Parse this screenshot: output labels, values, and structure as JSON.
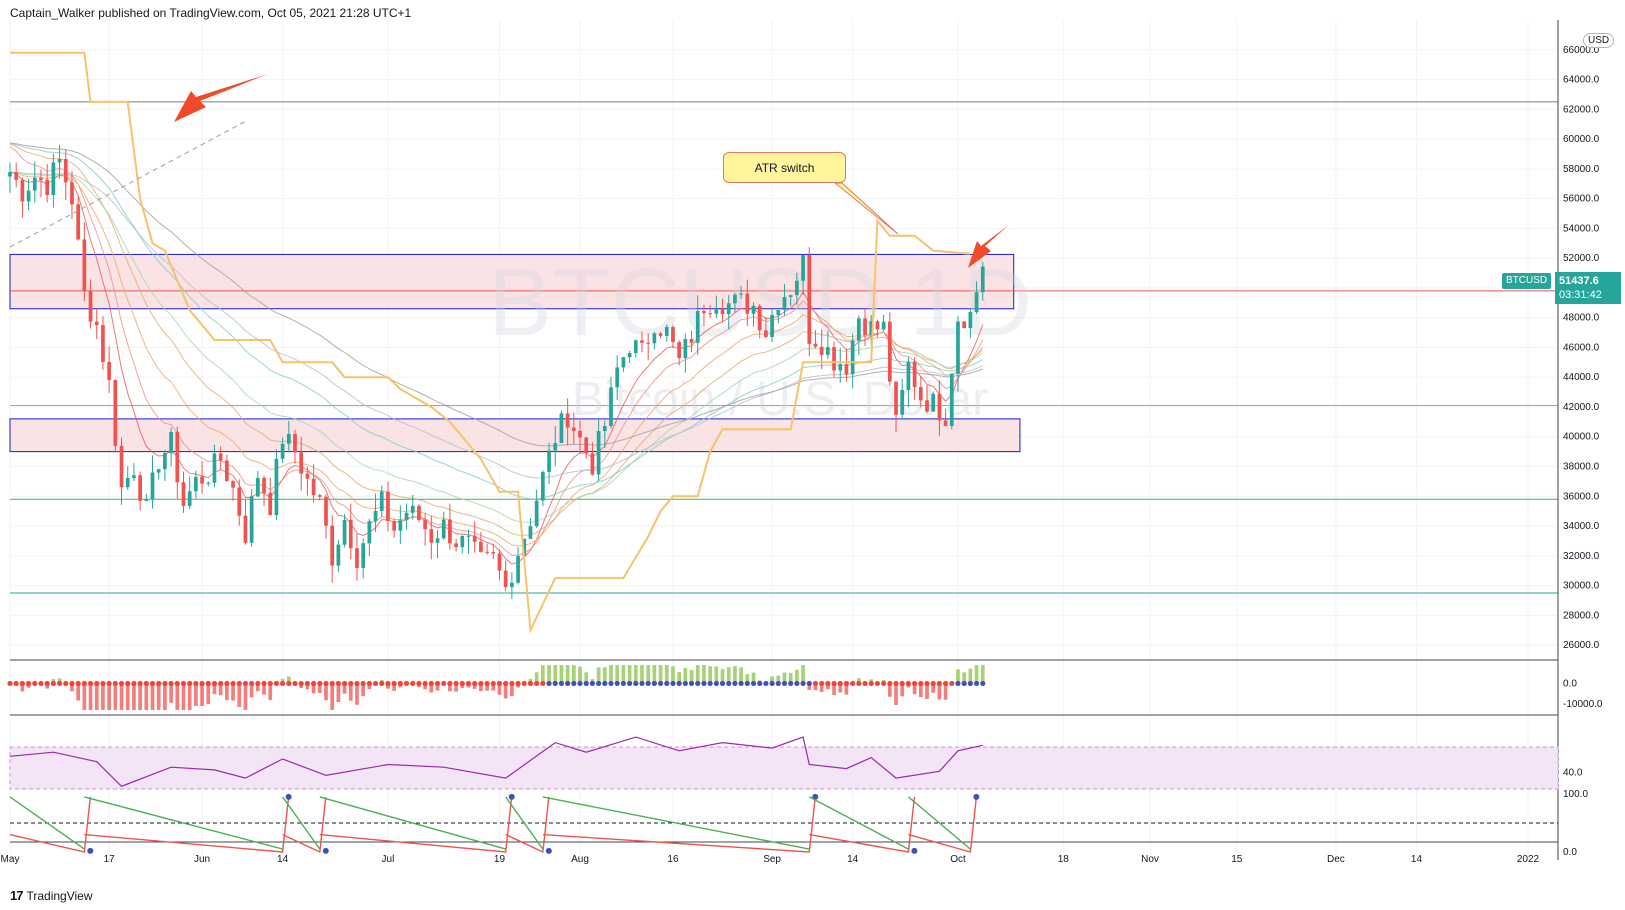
{
  "header": {
    "publisher": "Captain_Walker published on TradingView.com, Oct 05, 2021 21:28 UTC+1"
  },
  "watermark": {
    "symbol": "BTCUSD",
    "interval": "1D",
    "description": "Bitcoin / U.S. Dollar"
  },
  "footer": {
    "brand": "TradingView"
  },
  "currency_button": "USD",
  "annotation": {
    "text": "ATR switch"
  },
  "price_tag": {
    "symbol": "BTCUSD",
    "price": "51437.6",
    "countdown": "03:31:42"
  },
  "colors": {
    "up": "#26a69a",
    "down": "#ef5350",
    "zone_fill": "#f8d7da",
    "zone_border": "#1a1ad4",
    "atr_line": "#f6c26b",
    "arrow": "#f04a2a",
    "rsi": "#9c27b0",
    "rsi_band": "#f3e5f5"
  },
  "chart_data": [
    {
      "type": "candlestick",
      "symbol": "BTCUSD",
      "interval": "1D",
      "ylim": [
        25000,
        68000
      ],
      "y_ticks": [
        26000,
        28000,
        30000,
        32000,
        34000,
        36000,
        38000,
        40000,
        42000,
        44000,
        46000,
        48000,
        50000,
        52000,
        54000,
        56000,
        58000,
        60000,
        62000,
        64000,
        66000
      ],
      "x_ticks": [
        "May",
        "17",
        "Jun",
        "14",
        "Jul",
        "19",
        "Aug",
        "16",
        "Sep",
        "14",
        "Oct",
        "18",
        "Nov",
        "15",
        "Dec",
        "14",
        "2022"
      ],
      "close_path": [
        [
          "2021-05-01",
          57800
        ],
        [
          "2021-05-03",
          56500
        ],
        [
          "2021-05-05",
          57500
        ],
        [
          "2021-05-07",
          57000
        ],
        [
          "2021-05-09",
          58500
        ],
        [
          "2021-05-11",
          56000
        ],
        [
          "2021-05-13",
          49500
        ],
        [
          "2021-05-15",
          47500
        ],
        [
          "2021-05-17",
          43500
        ],
        [
          "2021-05-19",
          36500
        ],
        [
          "2021-05-21",
          38000
        ],
        [
          "2021-05-23",
          35000
        ],
        [
          "2021-05-25",
          38500
        ],
        [
          "2021-05-27",
          39500
        ],
        [
          "2021-05-29",
          35500
        ],
        [
          "2021-05-31",
          37000
        ],
        [
          "2021-06-02",
          37500
        ],
        [
          "2021-06-04",
          38500
        ],
        [
          "2021-06-06",
          36500
        ],
        [
          "2021-06-08",
          33500
        ],
        [
          "2021-06-10",
          37500
        ],
        [
          "2021-06-12",
          35500
        ],
        [
          "2021-06-14",
          40000
        ],
        [
          "2021-06-16",
          39000
        ],
        [
          "2021-06-18",
          37000
        ],
        [
          "2021-06-20",
          35500
        ],
        [
          "2021-06-22",
          32000
        ],
        [
          "2021-06-24",
          34500
        ],
        [
          "2021-06-26",
          32000
        ],
        [
          "2021-06-28",
          34000
        ],
        [
          "2021-06-30",
          35500
        ],
        [
          "2021-07-02",
          33800
        ],
        [
          "2021-07-04",
          35000
        ],
        [
          "2021-07-06",
          34500
        ],
        [
          "2021-07-08",
          33300
        ],
        [
          "2021-07-10",
          34000
        ],
        [
          "2021-07-12",
          33000
        ],
        [
          "2021-07-14",
          32700
        ],
        [
          "2021-07-16",
          31500
        ],
        [
          "2021-07-18",
          31700
        ],
        [
          "2021-07-20",
          29800
        ],
        [
          "2021-07-22",
          32300
        ],
        [
          "2021-07-24",
          34500
        ],
        [
          "2021-07-26",
          37300
        ],
        [
          "2021-07-28",
          40000
        ],
        [
          "2021-07-30",
          41500
        ],
        [
          "2021-08-01",
          39800
        ],
        [
          "2021-08-03",
          38200
        ],
        [
          "2021-08-05",
          40800
        ],
        [
          "2021-08-07",
          44500
        ],
        [
          "2021-08-09",
          46300
        ],
        [
          "2021-08-11",
          45600
        ],
        [
          "2021-08-13",
          47800
        ],
        [
          "2021-08-15",
          47000
        ],
        [
          "2021-08-17",
          45000
        ],
        [
          "2021-08-19",
          46800
        ],
        [
          "2021-08-21",
          48900
        ],
        [
          "2021-08-23",
          49300
        ],
        [
          "2021-08-25",
          48900
        ],
        [
          "2021-08-27",
          49000
        ],
        [
          "2021-08-29",
          48800
        ],
        [
          "2021-08-31",
          47100
        ],
        [
          "2021-09-02",
          49300
        ],
        [
          "2021-09-04",
          50000
        ],
        [
          "2021-09-06",
          51700
        ],
        [
          "2021-09-07",
          46900
        ],
        [
          "2021-09-09",
          46400
        ],
        [
          "2021-09-11",
          45200
        ],
        [
          "2021-09-13",
          44900
        ],
        [
          "2021-09-15",
          48100
        ],
        [
          "2021-09-17",
          47300
        ],
        [
          "2021-09-19",
          47300
        ],
        [
          "2021-09-21",
          40700
        ],
        [
          "2021-09-23",
          44800
        ],
        [
          "2021-09-25",
          42700
        ],
        [
          "2021-09-27",
          42200
        ],
        [
          "2021-09-29",
          41500
        ],
        [
          "2021-10-01",
          48100
        ],
        [
          "2021-10-03",
          48200
        ],
        [
          "2021-10-05",
          51437.6
        ]
      ],
      "horizontal_lines": [
        {
          "price": 62500,
          "color": "#787b86"
        },
        {
          "price": 49800,
          "color": "#ef5350"
        },
        {
          "price": 42100,
          "color": "#8bc34a"
        },
        {
          "price": 35800,
          "color": "#4caf50"
        },
        {
          "price": 29500,
          "color": "#26a69a"
        }
      ],
      "zones": [
        {
          "from": 48600,
          "to": 52250,
          "x_from": "2021-05-01",
          "x_to": "2021-10-10"
        },
        {
          "from": 39000,
          "to": 41200,
          "x_from": "2021-05-01",
          "x_to": "2021-10-11"
        }
      ],
      "atr_trailing_stop": [
        [
          "2021-05-01",
          65800
        ],
        [
          "2021-05-13",
          65800
        ],
        [
          "2021-05-14",
          62500
        ],
        [
          "2021-05-20",
          62500
        ],
        [
          "2021-05-22",
          56000
        ],
        [
          "2021-05-24",
          53000
        ],
        [
          "2021-05-26",
          52500
        ],
        [
          "2021-05-30",
          48500
        ],
        [
          "2021-06-03",
          46500
        ],
        [
          "2021-06-12",
          46500
        ],
        [
          "2021-06-14",
          45000
        ],
        [
          "2021-06-22",
          45000
        ],
        [
          "2021-06-24",
          44000
        ],
        [
          "2021-07-01",
          44000
        ],
        [
          "2021-07-03",
          43200
        ],
        [
          "2021-07-08",
          42000
        ],
        [
          "2021-07-11",
          41000
        ],
        [
          "2021-07-16",
          38500
        ],
        [
          "2021-07-19",
          36300
        ],
        [
          "2021-07-22",
          36300
        ],
        [
          "2021-07-24",
          27000
        ],
        [
          "2021-07-28",
          30500
        ],
        [
          "2021-08-08",
          30500
        ],
        [
          "2021-08-12",
          33300
        ],
        [
          "2021-08-14",
          35000
        ],
        [
          "2021-08-16",
          36000
        ],
        [
          "2021-08-20",
          36000
        ],
        [
          "2021-08-22",
          39000
        ],
        [
          "2021-08-24",
          40500
        ],
        [
          "2021-09-04",
          40500
        ],
        [
          "2021-09-06",
          45000
        ],
        [
          "2021-09-17",
          45000
        ],
        [
          "2021-09-18",
          54500
        ],
        [
          "2021-09-20",
          53500
        ],
        [
          "2021-09-24",
          53500
        ],
        [
          "2021-09-27",
          52500
        ],
        [
          "2021-10-03",
          52300
        ]
      ],
      "annotations": [
        {
          "text": "ATR switch",
          "date": "2021-09-17",
          "price": 54600
        }
      ]
    },
    {
      "type": "histogram",
      "name": "momentum",
      "y_ticks": [
        0.0,
        -10000.0
      ],
      "ylim": [
        -14000,
        10000
      ]
    },
    {
      "type": "line",
      "name": "oscillator",
      "y_ticks": [
        40.0
      ],
      "band": [
        30,
        70
      ],
      "ylim": [
        20,
        80
      ],
      "values": [
        [
          "2021-05-01",
          52
        ],
        [
          "2021-05-08",
          55
        ],
        [
          "2021-05-15",
          48
        ],
        [
          "2021-05-19",
          30
        ],
        [
          "2021-05-27",
          44
        ],
        [
          "2021-06-03",
          42
        ],
        [
          "2021-06-08",
          36
        ],
        [
          "2021-06-14",
          50
        ],
        [
          "2021-06-21",
          38
        ],
        [
          "2021-07-01",
          46
        ],
        [
          "2021-07-10",
          44
        ],
        [
          "2021-07-20",
          36
        ],
        [
          "2021-07-28",
          62
        ],
        [
          "2021-08-02",
          55
        ],
        [
          "2021-08-10",
          66
        ],
        [
          "2021-08-17",
          56
        ],
        [
          "2021-08-24",
          62
        ],
        [
          "2021-09-01",
          58
        ],
        [
          "2021-09-06",
          66
        ],
        [
          "2021-09-07",
          46
        ],
        [
          "2021-09-13",
          43
        ],
        [
          "2021-09-17",
          51
        ],
        [
          "2021-09-21",
          36
        ],
        [
          "2021-09-28",
          41
        ],
        [
          "2021-10-01",
          56
        ],
        [
          "2021-10-05",
          60
        ]
      ]
    },
    {
      "type": "line",
      "name": "stochastic",
      "y_ticks": [
        100.0,
        0.0
      ],
      "ylim": [
        0,
        100
      ],
      "reference_level": 50
    }
  ]
}
